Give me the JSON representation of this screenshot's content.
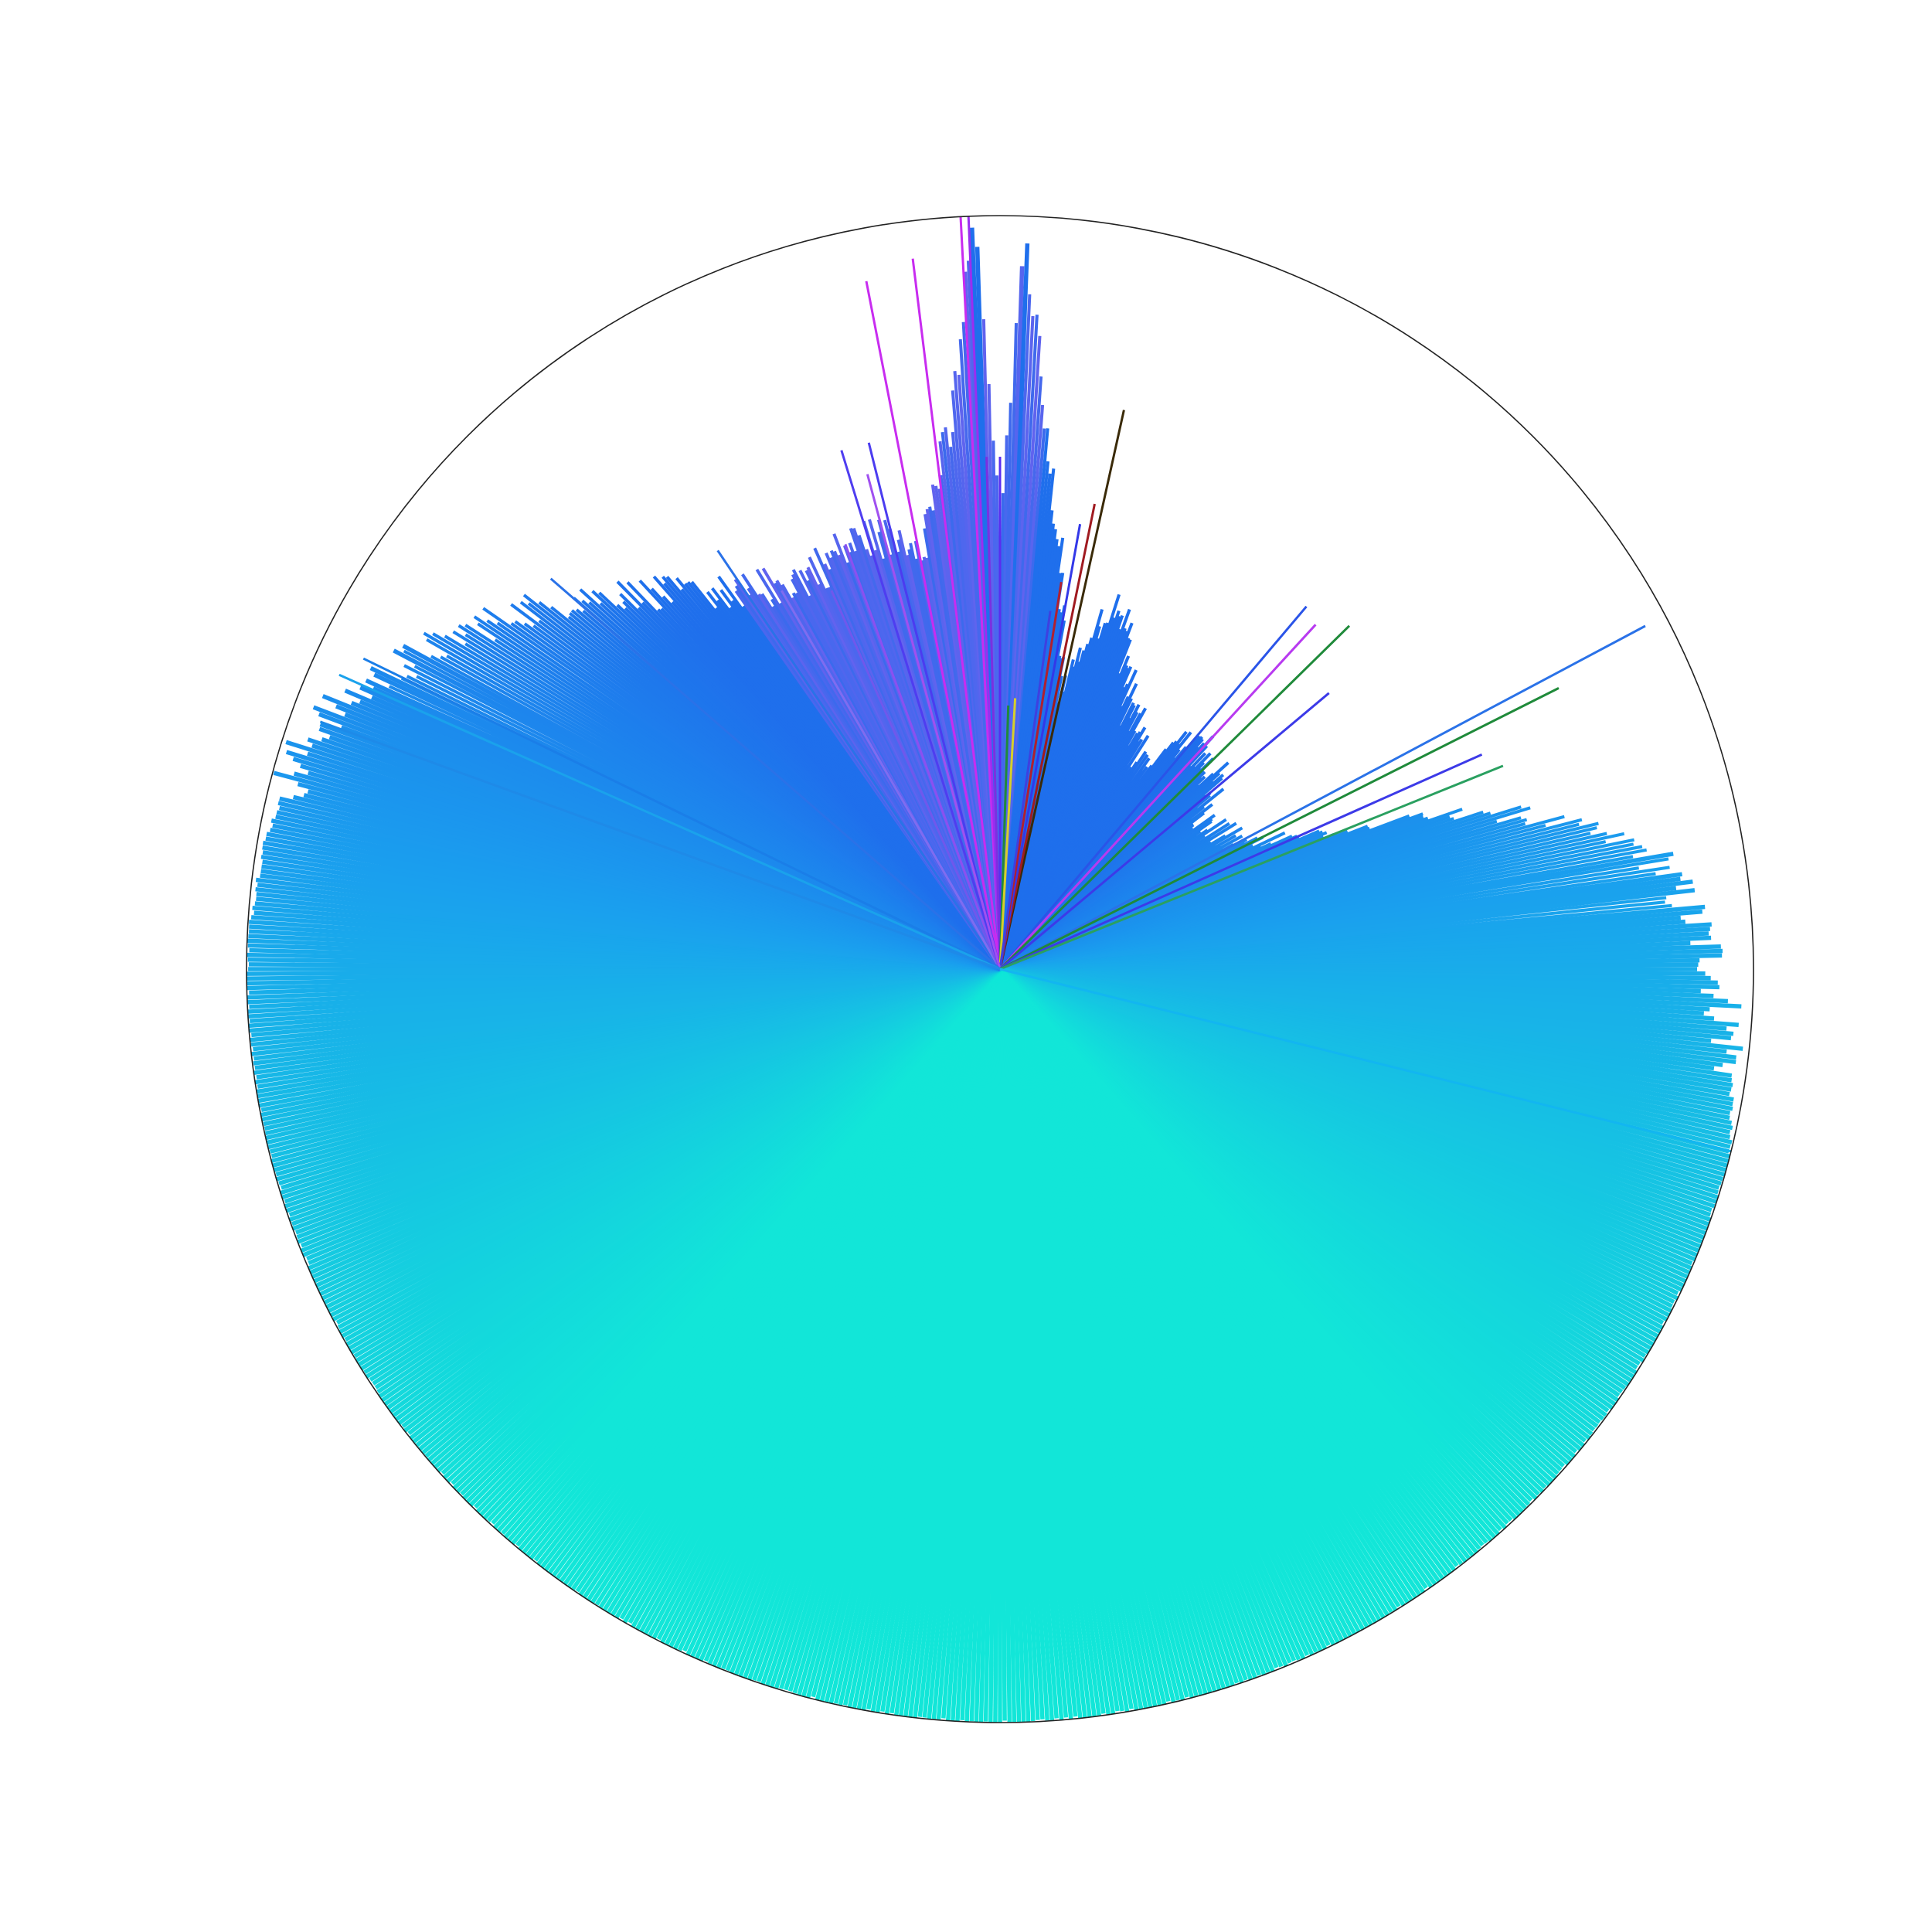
{
  "chart_data": {
    "type": "bar",
    "projection": "polar",
    "title": "",
    "axis_frame": "circle",
    "grid": false,
    "tick_labels": false,
    "radius_max": 1.0,
    "angle_zero": "top",
    "angle_direction": "clockwise",
    "bar_count": 1000,
    "profile": [
      {
        "angle_deg": 0,
        "value": 0.55
      },
      {
        "angle_deg": 2,
        "value": 0.96
      },
      {
        "angle_deg": 5,
        "value": 0.7
      },
      {
        "angle_deg": 12,
        "value": 0.38
      },
      {
        "angle_deg": 18,
        "value": 0.52
      },
      {
        "angle_deg": 25,
        "value": 0.4
      },
      {
        "angle_deg": 35,
        "value": 0.32
      },
      {
        "angle_deg": 40,
        "value": 0.4
      },
      {
        "angle_deg": 48,
        "value": 0.38
      },
      {
        "angle_deg": 55,
        "value": 0.33
      },
      {
        "angle_deg": 62,
        "value": 0.35
      },
      {
        "angle_deg": 68,
        "value": 0.48
      },
      {
        "angle_deg": 72,
        "value": 0.68
      },
      {
        "angle_deg": 80,
        "value": 0.88
      },
      {
        "angle_deg": 90,
        "value": 0.95
      },
      {
        "angle_deg": 98,
        "value": 0.98
      },
      {
        "angle_deg": 105,
        "value": 1.0
      },
      {
        "angle_deg": 180,
        "value": 1.0
      },
      {
        "angle_deg": 255,
        "value": 1.0
      },
      {
        "angle_deg": 270,
        "value": 1.0
      },
      {
        "angle_deg": 280,
        "value": 0.99
      },
      {
        "angle_deg": 290,
        "value": 0.96
      },
      {
        "angle_deg": 300,
        "value": 0.86
      },
      {
        "angle_deg": 310,
        "value": 0.76
      },
      {
        "angle_deg": 318,
        "value": 0.67
      },
      {
        "angle_deg": 326,
        "value": 0.6
      },
      {
        "angle_deg": 334,
        "value": 0.58
      },
      {
        "angle_deg": 342,
        "value": 0.6
      },
      {
        "angle_deg": 350,
        "value": 0.58
      },
      {
        "angle_deg": 355,
        "value": 0.72
      },
      {
        "angle_deg": 358,
        "value": 0.98
      },
      {
        "angle_deg": 360,
        "value": 0.55
      }
    ],
    "spikes": [
      {
        "angle_deg": 357,
        "value": 1.0,
        "color": "#c82cf0"
      },
      {
        "angle_deg": 357.6,
        "value": 1.0,
        "color": "#9a2ef0"
      },
      {
        "angle_deg": 353,
        "value": 0.95,
        "color": "#c82cf0"
      },
      {
        "angle_deg": 349,
        "value": 0.93,
        "color": "#c82cf0"
      },
      {
        "angle_deg": 346,
        "value": 0.72,
        "color": "#4b3cf0"
      },
      {
        "angle_deg": 360,
        "value": 0.68,
        "color": "#5a2cf0"
      },
      {
        "angle_deg": 358.5,
        "value": 0.68,
        "color": "#7a30e0"
      },
      {
        "angle_deg": 1.8,
        "value": 0.35,
        "color": "#1f8a3a"
      },
      {
        "angle_deg": 3.2,
        "value": 0.36,
        "color": "#d7cf2a"
      },
      {
        "angle_deg": 12.5,
        "value": 0.76,
        "color": "#3a2a08"
      },
      {
        "angle_deg": 11.5,
        "value": 0.63,
        "color": "#a01a20"
      },
      {
        "angle_deg": 10.2,
        "value": 0.6,
        "color": "#3338e8"
      },
      {
        "angle_deg": 9.0,
        "value": 0.52,
        "color": "#b02030"
      },
      {
        "angle_deg": 8.0,
        "value": 0.48,
        "color": "#3e40e0"
      },
      {
        "angle_deg": -34,
        "value": 0.67,
        "color": "#2a72e8"
      },
      {
        "angle_deg": -30,
        "value": 0.58,
        "color": "#7f6cf0"
      },
      {
        "angle_deg": -24,
        "value": 0.55,
        "color": "#6f58ec"
      },
      {
        "angle_deg": -20,
        "value": 0.6,
        "color": "#8b50f0"
      },
      {
        "angle_deg": -17,
        "value": 0.72,
        "color": "#4f3df0"
      },
      {
        "angle_deg": -15,
        "value": 0.68,
        "color": "#a050f0"
      },
      {
        "angle_deg": 40.2,
        "value": 0.63,
        "color": "#2a54e8"
      },
      {
        "angle_deg": 42.5,
        "value": 0.62,
        "color": "#b83af0"
      },
      {
        "angle_deg": 45.5,
        "value": 0.65,
        "color": "#1f8a3a"
      },
      {
        "angle_deg": 50.0,
        "value": 0.57,
        "color": "#3c3ae8"
      },
      {
        "angle_deg": 62.0,
        "value": 0.97,
        "color": "#2a72e8"
      },
      {
        "angle_deg": 63.3,
        "value": 0.83,
        "color": "#1f8a3a"
      },
      {
        "angle_deg": 66.0,
        "value": 0.7,
        "color": "#3c3ae8"
      },
      {
        "angle_deg": 68.0,
        "value": 0.72,
        "color": "#2aa060"
      },
      {
        "angle_deg": -49.0,
        "value": 0.79,
        "color": "#2a72e8"
      },
      {
        "angle_deg": -64.0,
        "value": 0.94,
        "color": "#1a7ee8"
      },
      {
        "angle_deg": -66.0,
        "value": 0.96,
        "color": "#1aa2ec"
      },
      {
        "angle_deg": -70.0,
        "value": 0.96,
        "color": "#1e8ae8"
      },
      {
        "angle_deg": 104.0,
        "value": 1.0,
        "color": "#12b6f0"
      }
    ],
    "colors": {
      "top_blue": "#1f6fec",
      "mid_blue": "#1aa0ee",
      "bottom_cyan": "#12e6d8",
      "violet": "#8a5cf0",
      "magenta": "#c82cf0",
      "frame": "#222222"
    }
  }
}
